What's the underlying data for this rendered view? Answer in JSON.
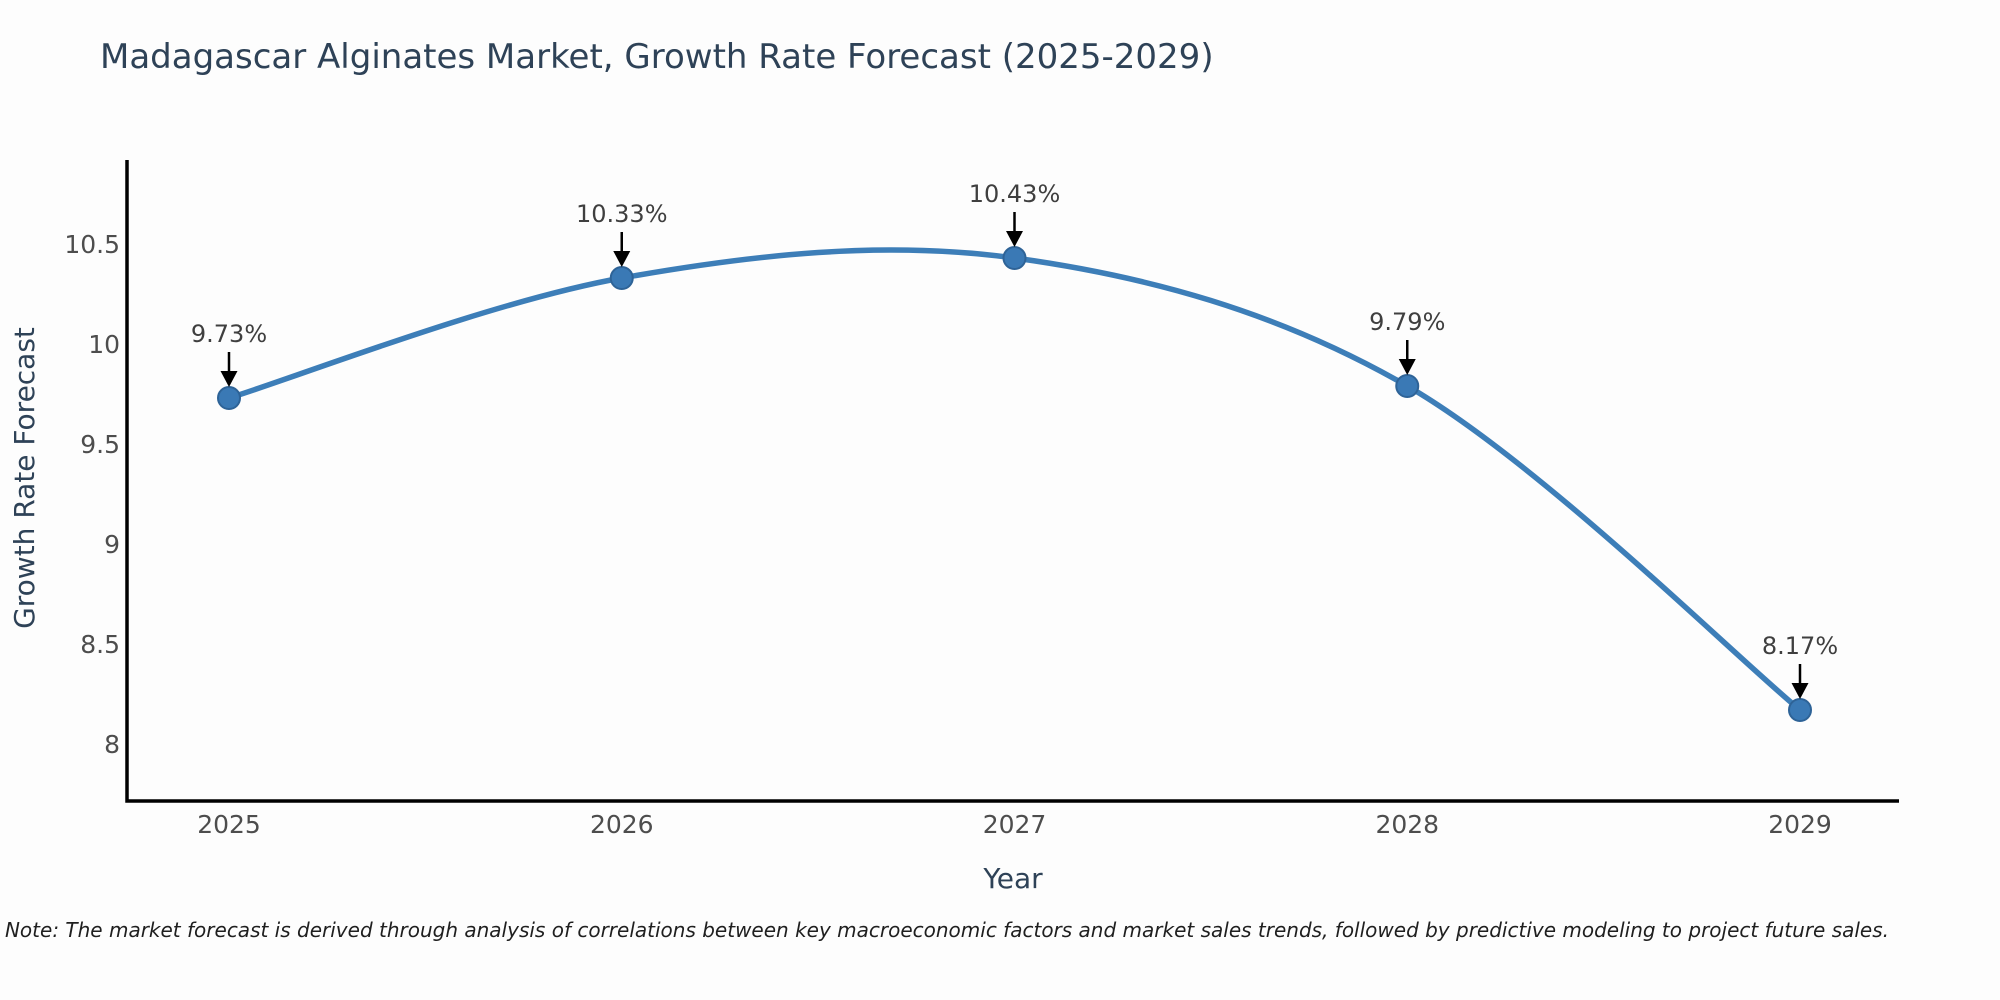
{
  "title": "Madagascar Alginates Market, Growth Rate Forecast (2025-2029)",
  "footnote": "Note: The market forecast is derived through analysis of correlations between key macroeconomic factors and market sales trends, followed by predictive modeling to project future sales.",
  "chart_data": {
    "type": "line",
    "title": "Madagascar Alginates Market, Growth Rate Forecast (2025-2029)",
    "xlabel": "Year",
    "ylabel": "Growth Rate Forecast",
    "x": [
      2025,
      2026,
      2027,
      2028,
      2029
    ],
    "x_ticks": [
      "2025",
      "2026",
      "2027",
      "2028",
      "2029"
    ],
    "series": [
      {
        "name": "Growth Rate Forecast",
        "values": [
          9.73,
          10.33,
          10.43,
          9.79,
          8.17
        ]
      }
    ],
    "point_labels": [
      "9.73%",
      "10.33%",
      "10.43%",
      "9.79%",
      "8.17%"
    ],
    "y_ticks": [
      8,
      8.5,
      9,
      9.5,
      10,
      10.5
    ],
    "ylim": [
      7.72,
      10.92
    ],
    "grid": false,
    "smooth_line": true,
    "legend": "none",
    "colors": {
      "line": "#3d7eb8",
      "marker_fill": "#3a79b5",
      "marker_edge": "#2e6397",
      "axis_line": "#000000",
      "heading_text": "#2e4257",
      "tick_text": "#4d4d4d",
      "annotation_text": "#3f3f3f",
      "annotation_arrow": "#000000",
      "note_text": "#1f1f1f"
    }
  }
}
